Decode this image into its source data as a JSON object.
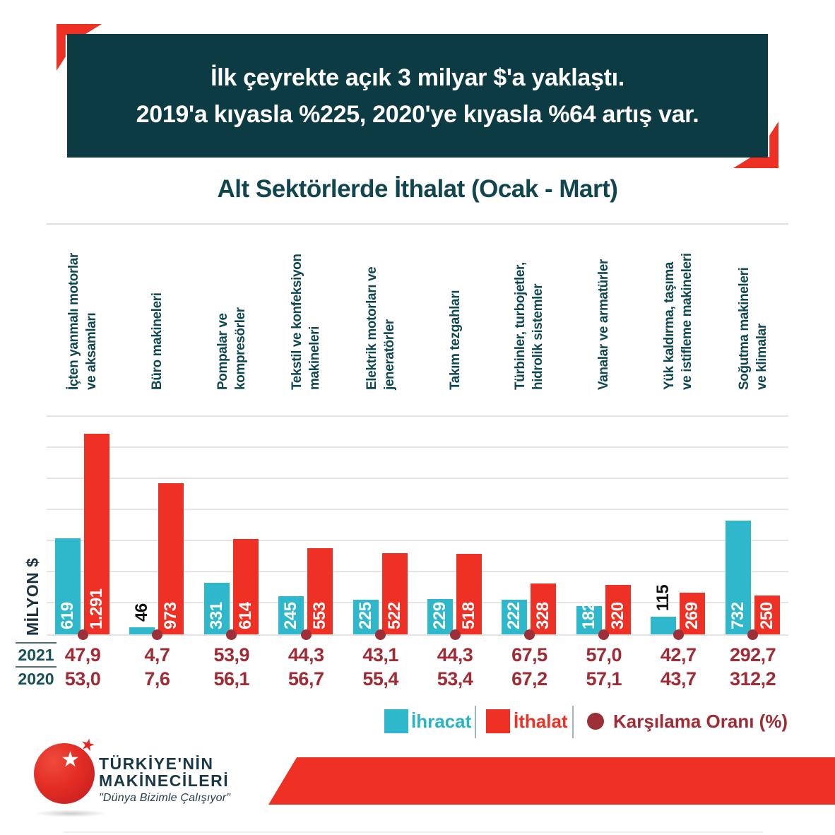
{
  "header": {
    "line1": "İlk çeyrekte açık 3 milyar $'a yaklaştı.",
    "line2": "2019'a kıyasla %225, 2020'ye kıyasla %64 artış var."
  },
  "title": "Alt Sektörlerde İthalat (Ocak - Mart)",
  "axis": {
    "y_label": "MİLYON $"
  },
  "chart_data": {
    "type": "bar",
    "unit": "milyon $",
    "ylim": [
      0,
      1400
    ],
    "gridline_step": 200,
    "grid": true,
    "legend_position": "bottom",
    "categories": [
      "İçten yanmalı motorlar ve aksamları",
      "Büro makineleri",
      "Pompalar ve kompresörler",
      "Tekstil ve konfeksiyon makineleri",
      "Elektrik motorları ve jeneratörler",
      "Takım tezgahları",
      "Türbinler, turbojetler, hidrolik sistemler",
      "Vanalar ve armatürler",
      "Yük kaldırma, taşıma ve istifleme makineleri",
      "Soğutma makineleri ve klimalar"
    ],
    "category_lines": [
      [
        "İçten yanmalı motorlar",
        "ve aksamları"
      ],
      [
        "Büro makineleri"
      ],
      [
        "Pompalar ve",
        "kompresörler"
      ],
      [
        "Tekstil ve konfeksiyon",
        "makineleri"
      ],
      [
        "Elektrik motorları ve",
        "jeneratörler"
      ],
      [
        "Takım tezgahları"
      ],
      [
        "Türbinler, turbojetler,",
        "hidrolik sistemler"
      ],
      [
        "Vanalar ve armatürler"
      ],
      [
        "Yük kaldırma, taşıma",
        "ve istifleme makineleri"
      ],
      [
        "Soğutma makineleri",
        "ve klimalar"
      ]
    ],
    "series": [
      {
        "name": "İhracat",
        "color": "#2fb7cb",
        "values": [
          619,
          46,
          331,
          245,
          225,
          229,
          222,
          182,
          115,
          732
        ],
        "labels": [
          "619",
          "46",
          "331",
          "245",
          "225",
          "229",
          "222",
          "182",
          "115",
          "732"
        ],
        "label_outside": [
          false,
          true,
          false,
          false,
          false,
          false,
          false,
          false,
          true,
          false
        ]
      },
      {
        "name": "İthalat",
        "color": "#ee3124",
        "values": [
          1291,
          973,
          614,
          553,
          522,
          518,
          328,
          320,
          269,
          250
        ],
        "labels": [
          "1.291",
          "973",
          "614",
          "553",
          "522",
          "518",
          "328",
          "320",
          "269",
          "250"
        ],
        "label_outside": [
          false,
          false,
          false,
          false,
          false,
          false,
          false,
          false,
          false,
          false
        ]
      }
    ],
    "coverage_ratio": {
      "name": "Karşılama Oranı (%)",
      "color": "#9d2f38",
      "rows": [
        {
          "year": "2021",
          "values": [
            "47,9",
            "4,7",
            "53,9",
            "44,3",
            "43,1",
            "44,3",
            "67,5",
            "57,0",
            "42,7",
            "292,7"
          ]
        },
        {
          "year": "2020",
          "values": [
            "53,0",
            "7,6",
            "56,1",
            "56,7",
            "55,4",
            "53,4",
            "67,2",
            "57,1",
            "43,7",
            "312,2"
          ]
        }
      ]
    }
  },
  "legend": [
    {
      "label": "İhracat",
      "color": "#2fb7cb",
      "text_color": "#29b4c9",
      "marker": "square"
    },
    {
      "label": "İthalat",
      "color": "#ee3124",
      "text_color": "#ee3124",
      "marker": "square"
    },
    {
      "label": "Karşılama Oranı (%)",
      "color": "#9d2f38",
      "text_color": "#a12b35",
      "marker": "dot"
    }
  ],
  "logo": {
    "line1": "TÜRKİYE'NİN",
    "line2": "MAKİNECİLERİ",
    "tagline": "\"Dünya Bizimle Çalışıyor\"",
    "star": "★"
  },
  "colors": {
    "banner_teal": "#0c3b44",
    "accent_red": "#ee3124",
    "export_cyan": "#2fb7cb",
    "import_red": "#ee3124",
    "coverage_dark_red": "#9d2f38",
    "title_teal": "#11454f",
    "gridline_gray": "#e4e4e4"
  }
}
